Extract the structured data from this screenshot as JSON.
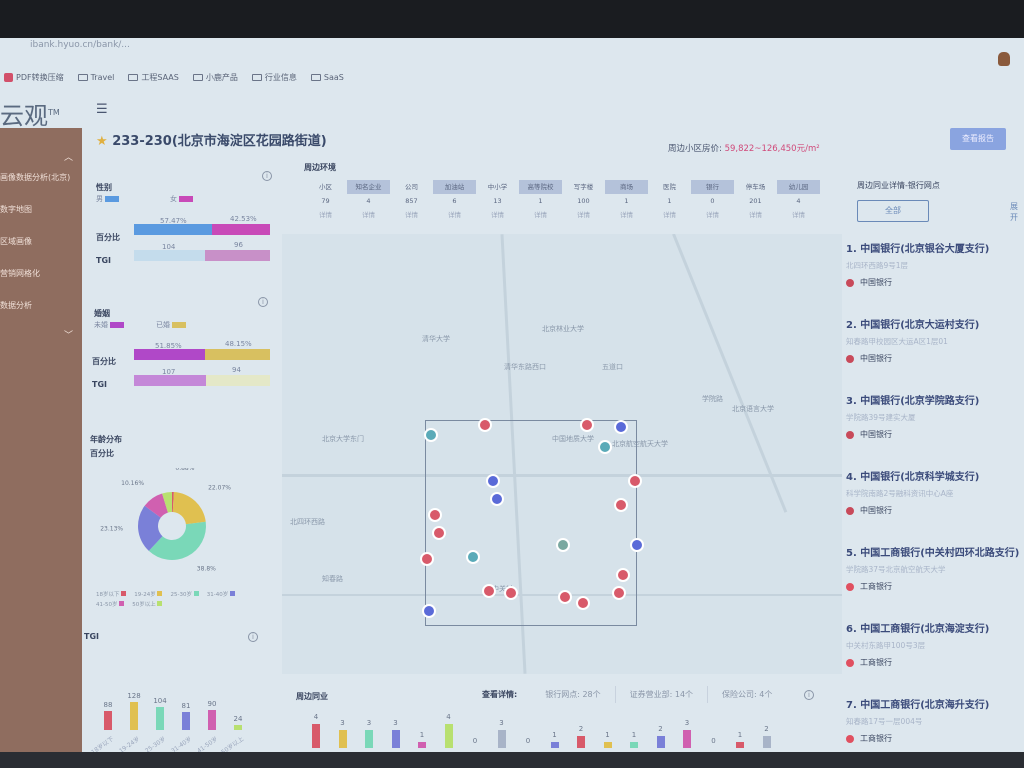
{
  "browser": {
    "url": "ibank.hyuo.cn/bank/...",
    "bookmarks": [
      "PDF转换压缩",
      "Travel",
      "工程SAAS",
      "小鹿产品",
      "行业信息",
      "SaaS"
    ]
  },
  "app": {
    "logo": "云观",
    "logo_mark": "TM",
    "menu_icon": "menu-icon"
  },
  "sidebar": {
    "items": [
      "画像数据分析(北京)",
      "数字地图",
      "区域画像",
      "营销网格化",
      "数据分析"
    ]
  },
  "header": {
    "title": "233-230(北京市海淀区花园路街道)",
    "price_label": "周边小区房价:",
    "price_value": "59,822~126,450元/m²",
    "report_button": "查看报告"
  },
  "gender": {
    "title": "性别",
    "legend": [
      "男",
      "女"
    ],
    "pct_label": "百分比",
    "tgi_label": "TGI",
    "pct": [
      57.47,
      42.53
    ],
    "pct_text": [
      "57.47%",
      "42.53%"
    ],
    "tgi": [
      104,
      96
    ],
    "tgi_text": [
      "104",
      "96"
    ]
  },
  "marriage": {
    "title": "婚姻",
    "legend": [
      "未婚",
      "已婚"
    ],
    "pct_label": "百分比",
    "tgi_label": "TGI",
    "pct": [
      51.85,
      48.15
    ],
    "pct_text": [
      "51.85%",
      "48.15%"
    ],
    "tgi": [
      107,
      94
    ],
    "tgi_text": [
      "107",
      "94"
    ]
  },
  "age": {
    "title": "年龄分布",
    "subtitle": "百分比",
    "categories": [
      "18岁以下",
      "19-24岁",
      "25-30岁",
      "31-40岁",
      "41-50岁",
      "50岁以上"
    ],
    "pct": [
      0.88,
      22.07,
      38.8,
      23.13,
      10.16,
      4.68
    ],
    "pct_text": [
      "0.88%",
      "22.07%",
      "38.8%",
      "23.13%",
      "10.16%",
      "4.68%"
    ],
    "colors": [
      "#d85a6a",
      "#e0c050",
      "#7ad8b8",
      "#7a80d8",
      "#d060b0",
      "#b8e070"
    ]
  },
  "tgi_chart": {
    "title": "TGI",
    "values": [
      88,
      128,
      104,
      81,
      90,
      24
    ],
    "value_text": [
      "88",
      "128",
      "104",
      "81",
      "90",
      "24"
    ]
  },
  "environment": {
    "title": "周边环境",
    "columns": [
      {
        "name": "小区",
        "value": "79",
        "link": "详情"
      },
      {
        "name": "知名企业",
        "value": "4",
        "link": "详情"
      },
      {
        "name": "公司",
        "value": "857",
        "link": "详情"
      },
      {
        "name": "加油站",
        "value": "6",
        "link": "详情"
      },
      {
        "name": "中小学",
        "value": "13",
        "link": "详情"
      },
      {
        "name": "高等院校",
        "value": "1",
        "link": "详情"
      },
      {
        "name": "写字楼",
        "value": "100",
        "link": "详情"
      },
      {
        "name": "商场",
        "value": "1",
        "link": "详情"
      },
      {
        "name": "医院",
        "value": "1",
        "link": "详情"
      },
      {
        "name": "银行",
        "value": "0",
        "link": "详情"
      },
      {
        "name": "停车场",
        "value": "201",
        "link": "详情"
      },
      {
        "name": "幼儿园",
        "value": "4",
        "link": "详情"
      }
    ]
  },
  "map": {
    "labels": [
      "北京林业大学",
      "清华大学",
      "清华东路西口",
      "五道口",
      "北京大学东门",
      "北四环西路",
      "中国地质大学",
      "学院路",
      "北京语言大学",
      "知春路",
      "中关村",
      "北京航空航天大学"
    ]
  },
  "peers": {
    "title": "周边同业",
    "detail_label": "查看详情:",
    "tabs": [
      "银行网点: 28个",
      "证券营业部: 14个",
      "保险公司: 4个"
    ],
    "values": [
      4,
      3,
      3,
      3,
      1,
      4,
      0,
      3,
      0,
      1,
      2,
      1,
      1,
      2,
      3,
      0,
      1,
      2
    ],
    "value_text": [
      "4",
      "3",
      "3",
      "3",
      "1",
      "4",
      "0",
      "3",
      "0",
      "1",
      "2",
      "1",
      "1",
      "2",
      "3",
      "0",
      "1",
      "2"
    ],
    "colors": [
      "#d85a6a",
      "#e0c050",
      "#7ad8b8",
      "#7a80d8",
      "#d060b0",
      "#b8e070",
      "#a8b4c8",
      "#a8b4c8",
      "#a8b4c8",
      "#7a80d8",
      "#d85a6a",
      "#e0c050",
      "#7ad8b8",
      "#7a80d8",
      "#d060b0",
      "#a8b4c8",
      "#d85a6a",
      "#a8b4c8"
    ]
  },
  "banks": {
    "title": "周边同业详情-银行网点",
    "filter_all": "全部",
    "more": "展开",
    "items": [
      {
        "name": "1. 中国银行(北京银谷大厦支行)",
        "address": "北四环西路9号1层",
        "brand": "中国银行",
        "color": "#c84a5a"
      },
      {
        "name": "2. 中国银行(北京大运村支行)",
        "address": "知春路甲校园区大运A区1层01",
        "brand": "中国银行",
        "color": "#c84a5a"
      },
      {
        "name": "3. 中国银行(北京学院路支行)",
        "address": "学院路39号建实大厦",
        "brand": "中国银行",
        "color": "#c84a5a"
      },
      {
        "name": "4. 中国银行(北京科学城支行)",
        "address": "科学院南路2号融科资讯中心A座",
        "brand": "中国银行",
        "color": "#c84a5a"
      },
      {
        "name": "5. 中国工商银行(中关村四环北路支行)",
        "address": "学院路37号北京航空航天大学",
        "brand": "工商银行",
        "color": "#e05060"
      },
      {
        "name": "6. 中国工商银行(北京海淀支行)",
        "address": "中关村东路甲100号3层",
        "brand": "工商银行",
        "color": "#e05060"
      },
      {
        "name": "7. 中国工商银行(北京海升支行)",
        "address": "知春路17号一层004号",
        "brand": "工商银行",
        "color": "#e05060"
      }
    ]
  }
}
